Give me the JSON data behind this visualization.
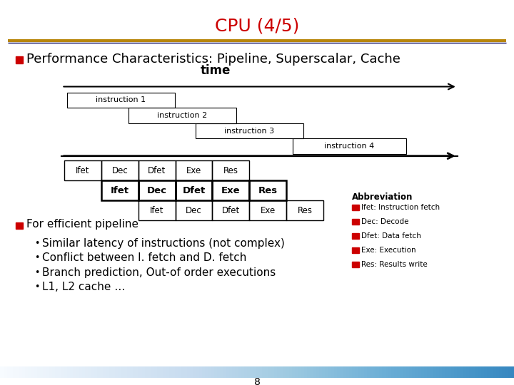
{
  "title": "CPU (4/5)",
  "title_color": "#cc0000",
  "bg_color": "#ffffff",
  "bullet_color": "#cc0000",
  "header_line_color1": "#b8860b",
  "header_line_color2": "#1a1a6e",
  "main_bullet": "Performance Characteristics: Pipeline, Superscalar, Cache",
  "time_label": "time",
  "pipeline_stages": [
    "Ifet",
    "Dec",
    "Dfet",
    "Exe",
    "Res"
  ],
  "instruction_labels": [
    "instruction 1",
    "instruction 2",
    "instruction 3",
    "instruction 4"
  ],
  "second_bullet": "For efficient pipeline",
  "sub_bullets": [
    "Similar latency of instructions (not complex)",
    "Conflict between I. fetch and D. fetch",
    "Branch prediction, Out-of order executions",
    "L1, L2 cache …"
  ],
  "abbrev_title": "Abbreviation",
  "abbrev_items": [
    "Ifet: Instruction fetch",
    "Dec: Decode",
    "Dfet: Data fetch",
    "Exe: Execution",
    "Res: Results write"
  ],
  "abbrev_color": "#cc0000",
  "footer_bar_color": "#4466cc",
  "footer_bar_color2": "#aabbee",
  "page_number": "8",
  "title_fontsize": 18,
  "main_bullet_fontsize": 13,
  "body_fontsize": 11,
  "small_fontsize": 8.5,
  "abbrev_fontsize": 7.5
}
